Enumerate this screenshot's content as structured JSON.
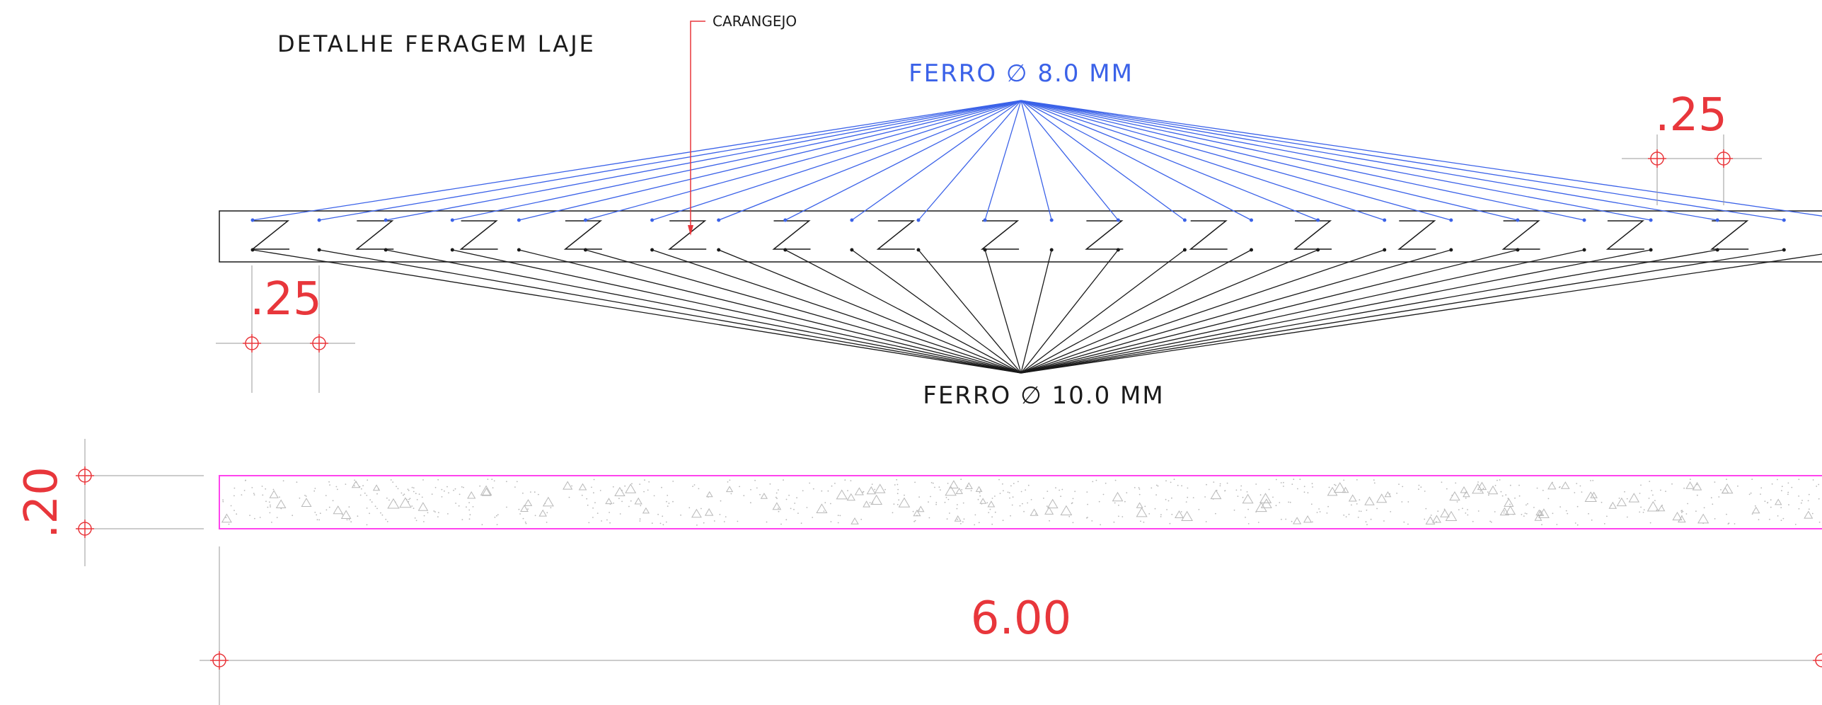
{
  "title": "DETALHE FERAGEM LAJE",
  "labels": {
    "carangejo": "CARANGEJO",
    "top_bar": "FERRO ∅ 8.0 MM",
    "bottom_bar": "FERRO ∅ 10.0 MM"
  },
  "dimensions": {
    "bar_spacing_left": ".25",
    "bar_spacing_right": ".25",
    "slab_thickness": ".20",
    "slab_length": "6.00"
  },
  "colors": {
    "top_leader": "#3b62e8",
    "bottom_leader": "#1a1a1a",
    "dimension": "#e8363b",
    "slab_outline": "#ff44ee",
    "outline": "#1a1a1a",
    "hatch": "#b8b8b8",
    "ext_line": "#9a9a9a"
  }
}
